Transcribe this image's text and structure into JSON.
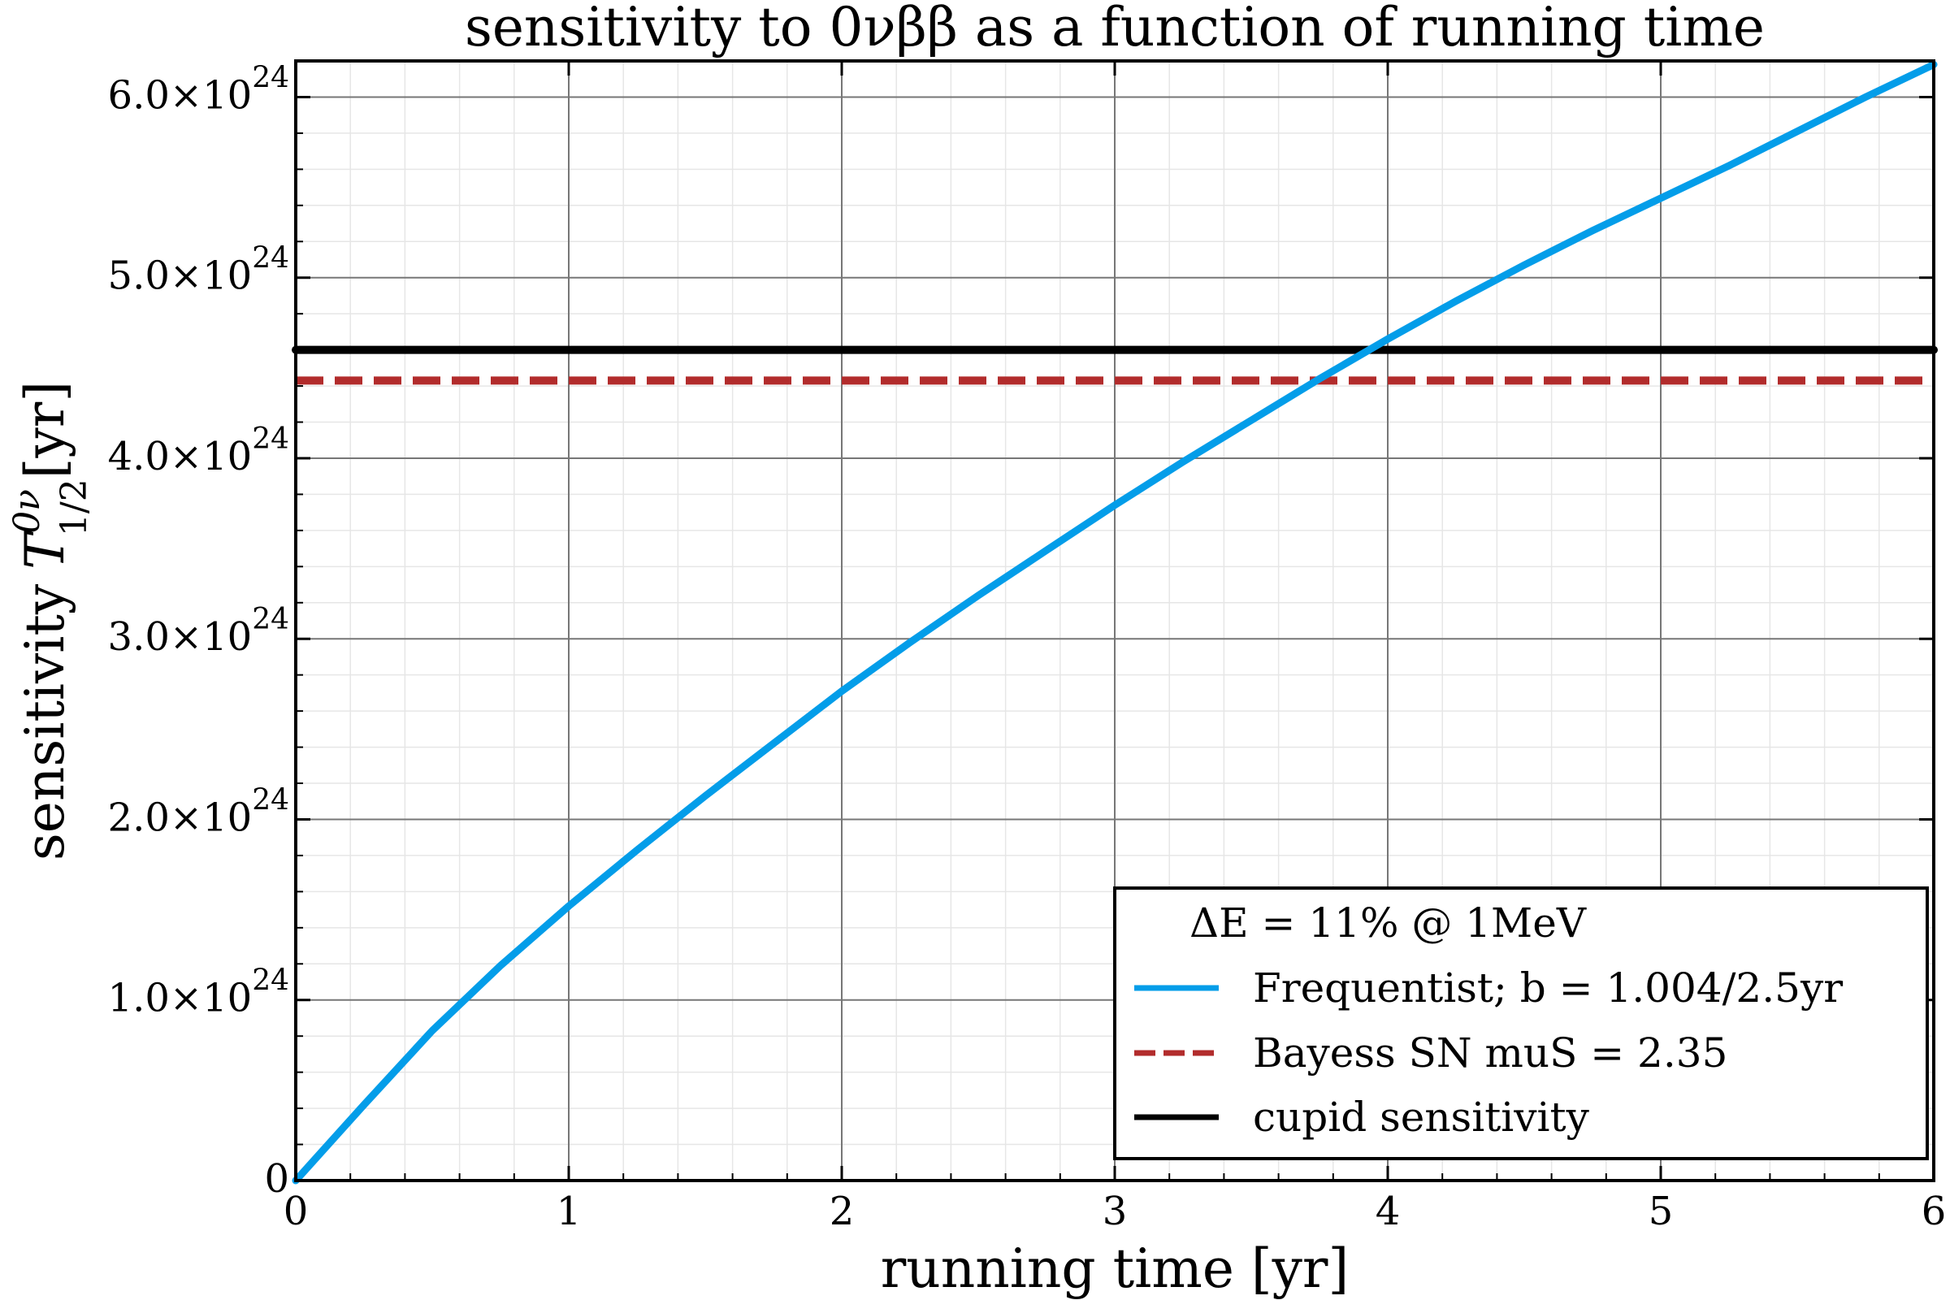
{
  "chart_data": {
    "type": "line",
    "title": "sensitivity to 0νββ as a function of running time",
    "xlabel": "running time [yr]",
    "ylabel": "sensitivity T_{1/2}^{0ν}[yr]",
    "ylabel_parts": {
      "prefix": "sensitivity",
      "symbol": "T",
      "superscript": "0ν",
      "subscript": "1/2",
      "suffix": "[yr]"
    },
    "xlim": [
      0,
      6
    ],
    "ylim": [
      0,
      6.2e+24
    ],
    "grid": true,
    "minor_grid": true,
    "x_ticks": [
      {
        "value": 0,
        "label": "0"
      },
      {
        "value": 1,
        "label": "1"
      },
      {
        "value": 2,
        "label": "2"
      },
      {
        "value": 3,
        "label": "3"
      },
      {
        "value": 4,
        "label": "4"
      },
      {
        "value": 5,
        "label": "5"
      },
      {
        "value": 6,
        "label": "6"
      }
    ],
    "y_ticks": [
      {
        "value": 0,
        "mantissa": "0",
        "exponent": ""
      },
      {
        "value": 1e+24,
        "mantissa": "1.0×10",
        "exponent": "24"
      },
      {
        "value": 2e+24,
        "mantissa": "2.0×10",
        "exponent": "24"
      },
      {
        "value": 3e+24,
        "mantissa": "3.0×10",
        "exponent": "24"
      },
      {
        "value": 4e+24,
        "mantissa": "4.0×10",
        "exponent": "24"
      },
      {
        "value": 5e+24,
        "mantissa": "5.0×10",
        "exponent": "24"
      },
      {
        "value": 6e+24,
        "mantissa": "6.0×10",
        "exponent": "24"
      }
    ],
    "legend": {
      "title": "ΔE = 11% @ 1MeV",
      "placement": "lower-right"
    },
    "series": [
      {
        "name": "Frequentist; b = 1.004/2.5yr",
        "style": "solid",
        "color": "#039de9",
        "x": [
          0,
          0.25,
          0.5,
          0.75,
          1.0,
          1.25,
          1.5,
          1.75,
          2.0,
          2.25,
          2.5,
          2.75,
          3.0,
          3.25,
          3.5,
          3.75,
          4.0,
          4.25,
          4.5,
          4.75,
          5.0,
          5.25,
          5.5,
          5.75,
          6.0
        ],
        "y": [
          0,
          4.2e+23,
          8.3e+23,
          1.19e+24,
          1.52e+24,
          1.83e+24,
          2.13e+24,
          2.42e+24,
          2.71e+24,
          2.98e+24,
          3.24e+24,
          3.49e+24,
          3.74e+24,
          3.98e+24,
          4.21e+24,
          4.44e+24,
          4.66e+24,
          4.87e+24,
          5.07e+24,
          5.26e+24,
          5.44e+24,
          5.62e+24,
          5.81e+24,
          6e+24,
          6.18e+24
        ]
      },
      {
        "name": "Bayess SN muS = 2.35",
        "style": "dashed",
        "color": "#b22c2c",
        "x": [
          0,
          6
        ],
        "y": [
          4.43e+24,
          4.43e+24
        ]
      },
      {
        "name": "cupid sensitivity",
        "style": "solid",
        "color": "#000000",
        "x": [
          0,
          6
        ],
        "y": [
          4.6e+24,
          4.6e+24
        ]
      }
    ]
  }
}
